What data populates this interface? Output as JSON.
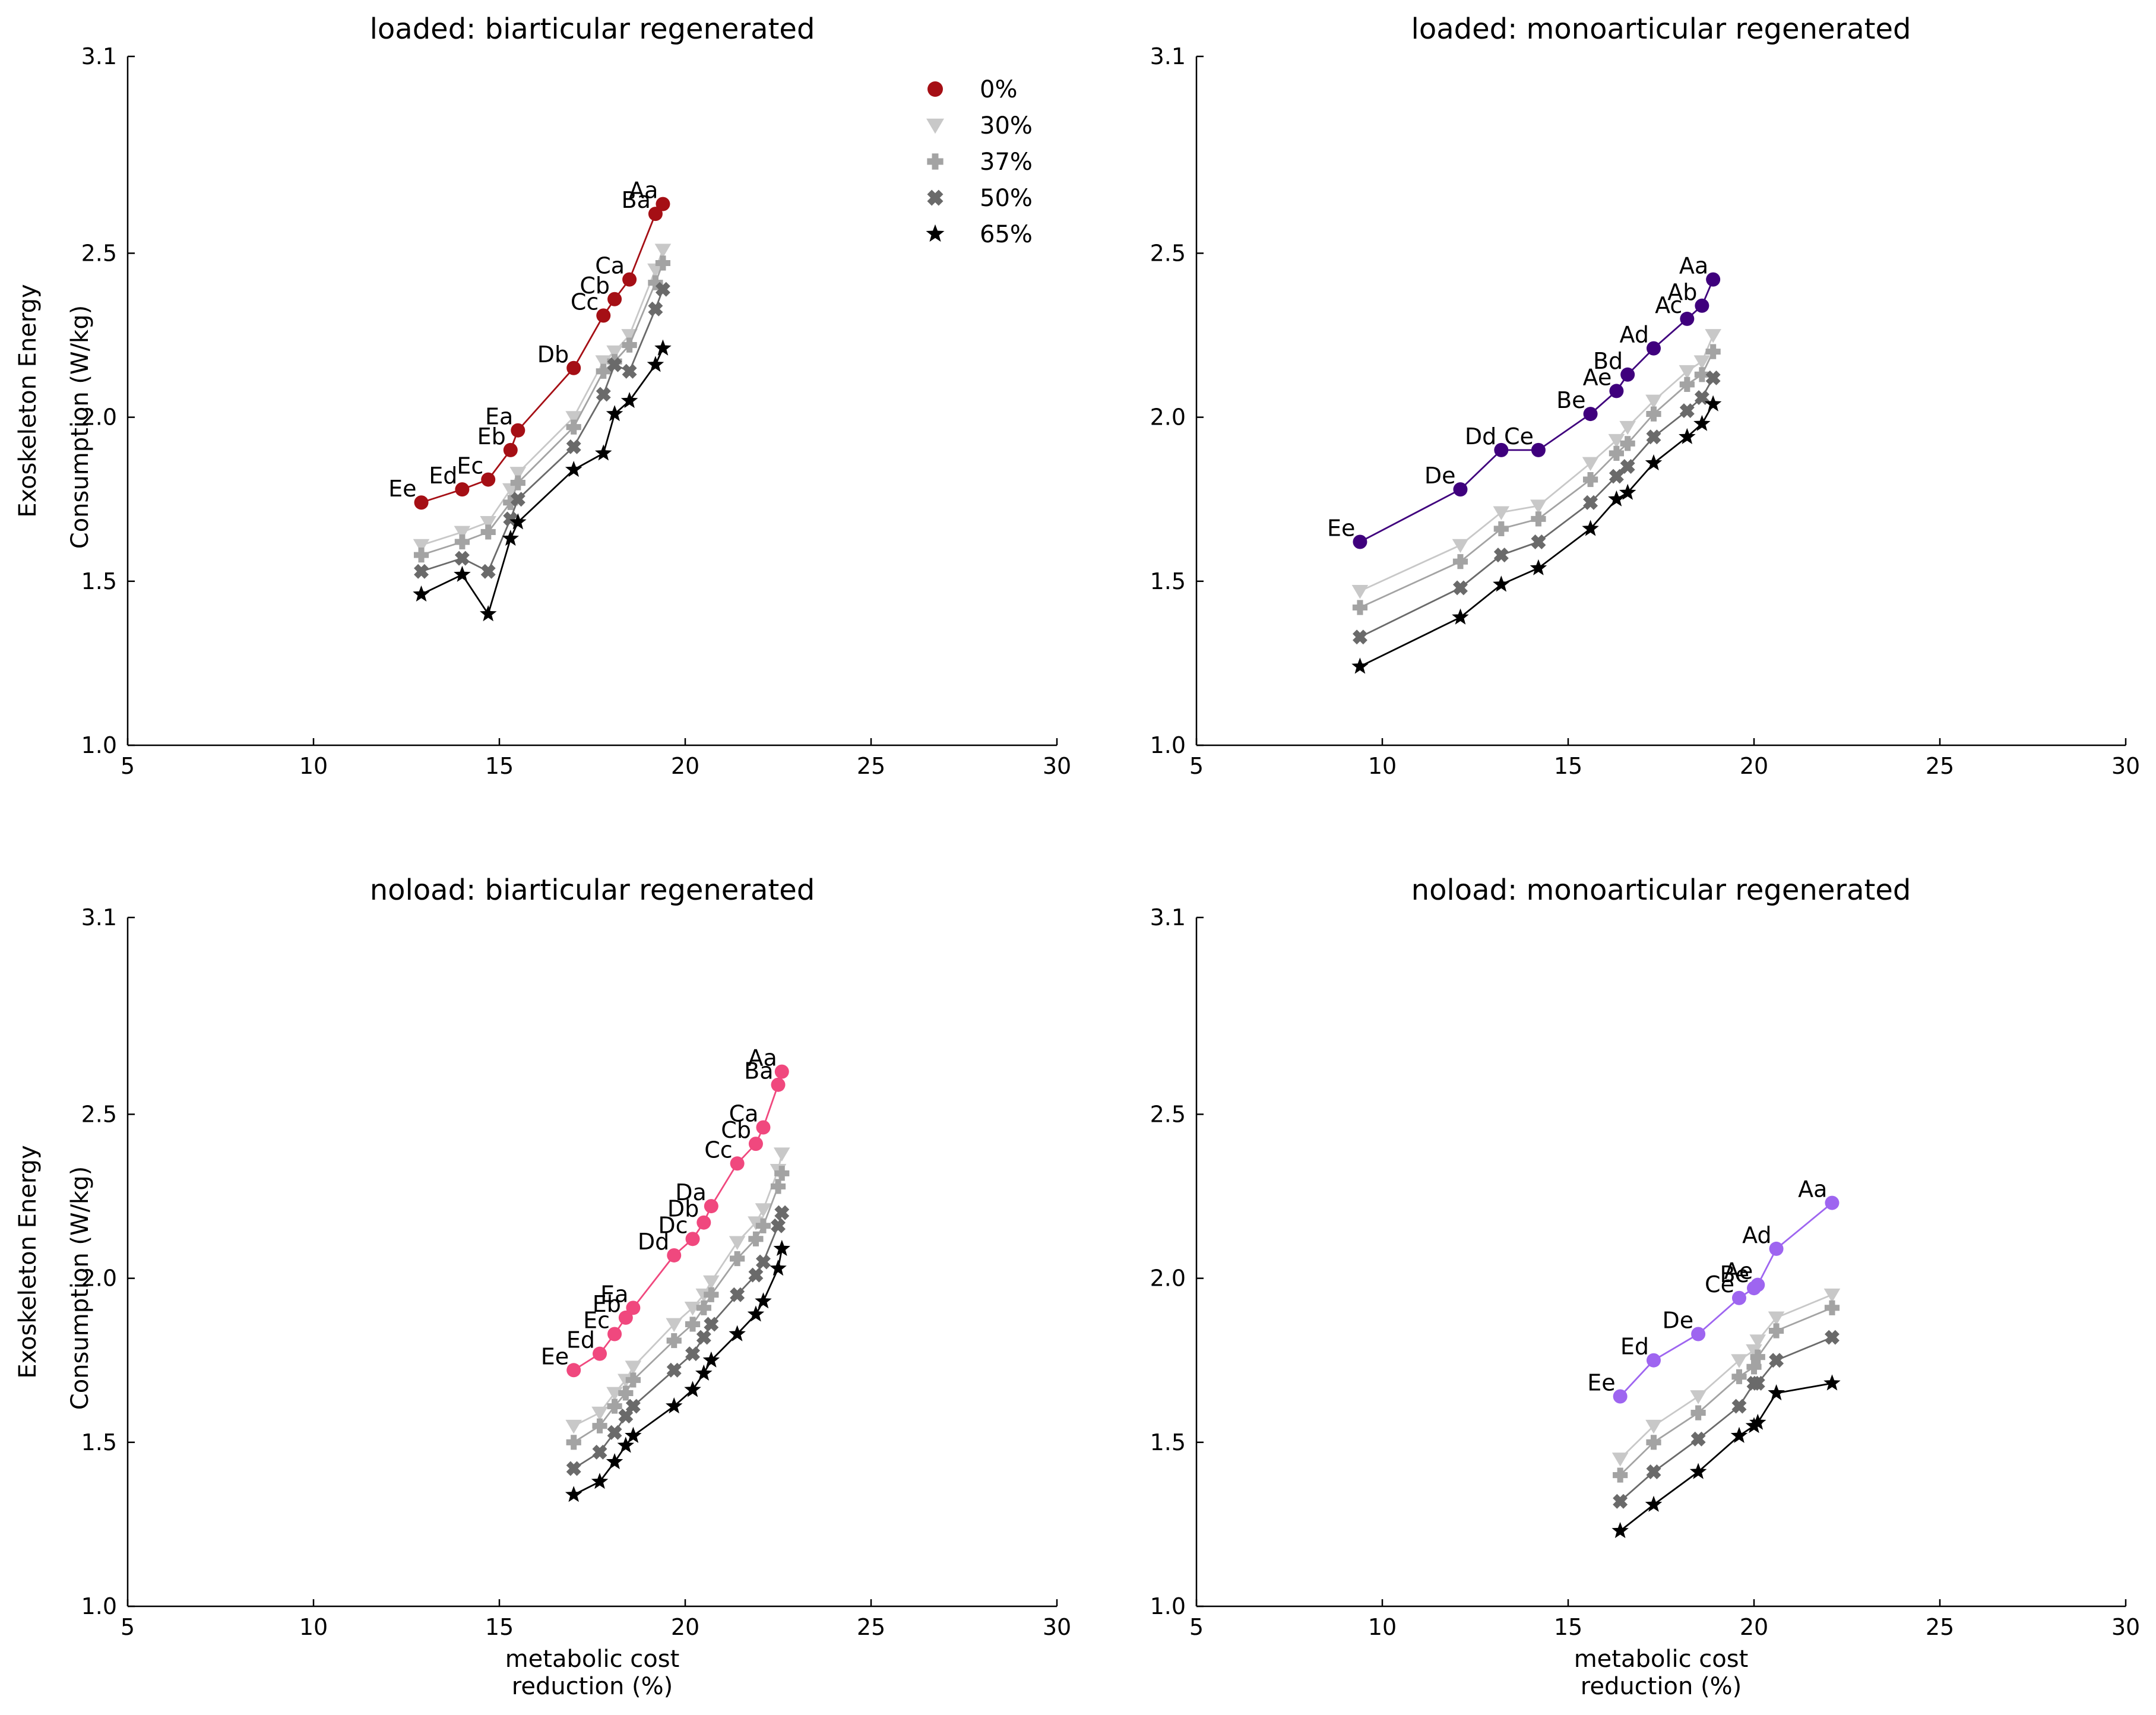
{
  "chart_data": [
    {
      "type": "line",
      "title": "loaded: biarticular regenerated",
      "xlabel": "",
      "ylabel": [
        "Exoskeleton Energy",
        "Consumption (W/kg)"
      ],
      "xlim": [
        5,
        30
      ],
      "ylim": [
        1.0,
        3.1
      ],
      "xticks": [
        5,
        10,
        15,
        20,
        25,
        30
      ],
      "yticks": [
        1.0,
        1.5,
        2.0,
        2.5,
        3.1
      ],
      "accent": "#a50f15",
      "legend": true,
      "series": [
        {
          "name": "0%",
          "x": [
            12.9,
            14.0,
            14.7,
            15.3,
            15.5,
            17.0,
            17.8,
            18.1,
            18.5,
            19.2,
            19.4
          ],
          "y": [
            1.74,
            1.78,
            1.81,
            1.9,
            1.96,
            2.15,
            2.31,
            2.36,
            2.42,
            2.62,
            2.65
          ],
          "labels": [
            "Ee",
            "Ed",
            "Ec",
            "Eb",
            "Ea",
            "Db",
            "Cc",
            "Cb",
            "Ca",
            "Ba",
            "Aa"
          ]
        },
        {
          "name": "30%",
          "x": [
            12.9,
            14.0,
            14.7,
            15.3,
            15.5,
            17.0,
            17.8,
            18.1,
            18.5,
            19.2,
            19.4
          ],
          "y": [
            1.61,
            1.65,
            1.68,
            1.78,
            1.83,
            2.0,
            2.17,
            2.2,
            2.25,
            2.45,
            2.51
          ]
        },
        {
          "name": "37%",
          "x": [
            12.9,
            14.0,
            14.7,
            15.3,
            15.5,
            17.0,
            17.8,
            18.1,
            18.5,
            19.2,
            19.4
          ],
          "y": [
            1.58,
            1.62,
            1.65,
            1.74,
            1.8,
            1.97,
            2.14,
            2.17,
            2.22,
            2.41,
            2.47
          ]
        },
        {
          "name": "50%",
          "x": [
            12.9,
            14.0,
            14.7,
            15.3,
            15.5,
            17.0,
            17.8,
            18.1,
            18.5,
            19.2,
            19.4
          ],
          "y": [
            1.53,
            1.57,
            1.53,
            1.69,
            1.75,
            1.91,
            2.07,
            2.16,
            2.14,
            2.33,
            2.39
          ]
        },
        {
          "name": "65%",
          "x": [
            12.9,
            14.0,
            14.7,
            15.3,
            15.5,
            17.0,
            17.8,
            18.1,
            18.5,
            19.2,
            19.4
          ],
          "y": [
            1.46,
            1.52,
            1.4,
            1.63,
            1.68,
            1.84,
            1.89,
            2.01,
            2.05,
            2.16,
            2.21
          ]
        }
      ]
    },
    {
      "type": "line",
      "title": "loaded: monoarticular regenerated",
      "xlabel": "",
      "ylabel": [],
      "xlim": [
        5,
        30
      ],
      "ylim": [
        1.0,
        3.1
      ],
      "xticks": [
        5,
        10,
        15,
        20,
        25,
        30
      ],
      "yticks": [
        1.0,
        1.5,
        2.0,
        2.5,
        3.1
      ],
      "accent": "#3f007d",
      "legend": false,
      "series": [
        {
          "name": "0%",
          "x": [
            9.4,
            12.1,
            13.2,
            14.2,
            15.6,
            16.3,
            16.6,
            17.3,
            18.2,
            18.6,
            18.9
          ],
          "y": [
            1.62,
            1.78,
            1.9,
            1.9,
            2.01,
            2.08,
            2.13,
            2.21,
            2.3,
            2.34,
            2.42
          ],
          "labels": [
            "Ee",
            "De",
            "Dd",
            "Ce",
            "Be",
            "Ae",
            "Bd",
            "Ad",
            "Ac",
            "Ab",
            "Aa"
          ]
        },
        {
          "name": "30%",
          "x": [
            9.4,
            12.1,
            13.2,
            14.2,
            15.6,
            16.3,
            16.6,
            17.3,
            18.2,
            18.6,
            18.9
          ],
          "y": [
            1.47,
            1.61,
            1.71,
            1.73,
            1.86,
            1.93,
            1.97,
            2.05,
            2.14,
            2.17,
            2.25
          ]
        },
        {
          "name": "37%",
          "x": [
            9.4,
            12.1,
            13.2,
            14.2,
            15.6,
            16.3,
            16.6,
            17.3,
            18.2,
            18.6,
            18.9
          ],
          "y": [
            1.42,
            1.56,
            1.66,
            1.69,
            1.81,
            1.89,
            1.92,
            2.01,
            2.1,
            2.13,
            2.2
          ]
        },
        {
          "name": "50%",
          "x": [
            9.4,
            12.1,
            13.2,
            14.2,
            15.6,
            16.3,
            16.6,
            17.3,
            18.2,
            18.6,
            18.9
          ],
          "y": [
            1.33,
            1.48,
            1.58,
            1.62,
            1.74,
            1.82,
            1.85,
            1.94,
            2.02,
            2.06,
            2.12
          ]
        },
        {
          "name": "65%",
          "x": [
            9.4,
            12.1,
            13.2,
            14.2,
            15.6,
            16.3,
            16.6,
            17.3,
            18.2,
            18.6,
            18.9
          ],
          "y": [
            1.24,
            1.39,
            1.49,
            1.54,
            1.66,
            1.75,
            1.77,
            1.86,
            1.94,
            1.98,
            2.04
          ]
        }
      ]
    },
    {
      "type": "line",
      "title": "noload: biarticular regenerated",
      "xlabel": [
        "metabolic cost",
        "reduction (%)"
      ],
      "ylabel": [
        "Exoskeleton Energy",
        "Consumption (W/kg)"
      ],
      "xlim": [
        5,
        30
      ],
      "ylim": [
        1.0,
        3.1
      ],
      "xticks": [
        5,
        10,
        15,
        20,
        25,
        30
      ],
      "yticks": [
        1.0,
        1.5,
        2.0,
        2.5,
        3.1
      ],
      "accent": "#f0487e",
      "legend": false,
      "series": [
        {
          "name": "0%",
          "x": [
            17.0,
            17.7,
            18.1,
            18.4,
            18.6,
            19.7,
            20.2,
            20.5,
            20.7,
            21.4,
            21.9,
            22.1,
            22.5,
            22.6
          ],
          "y": [
            1.72,
            1.77,
            1.83,
            1.88,
            1.91,
            2.07,
            2.12,
            2.17,
            2.22,
            2.35,
            2.41,
            2.46,
            2.59,
            2.63
          ],
          "labels": [
            "Ee",
            "Ed",
            "Ec",
            "Eb",
            "Ea",
            "Dd",
            "Dc",
            "Db",
            "Da",
            "Cc",
            "Cb",
            "Ca",
            "Ba",
            "Aa"
          ]
        },
        {
          "name": "30%",
          "x": [
            17.0,
            17.7,
            18.1,
            18.4,
            18.6,
            19.7,
            20.2,
            20.5,
            20.7,
            21.4,
            21.9,
            22.1,
            22.5,
            22.6
          ],
          "y": [
            1.55,
            1.59,
            1.65,
            1.69,
            1.73,
            1.86,
            1.91,
            1.95,
            1.99,
            2.11,
            2.17,
            2.21,
            2.33,
            2.38
          ]
        },
        {
          "name": "37%",
          "x": [
            17.0,
            17.7,
            18.1,
            18.4,
            18.6,
            19.7,
            20.2,
            20.5,
            20.7,
            21.4,
            21.9,
            22.1,
            22.5,
            22.6
          ],
          "y": [
            1.5,
            1.55,
            1.61,
            1.65,
            1.69,
            1.81,
            1.86,
            1.91,
            1.95,
            2.06,
            2.12,
            2.16,
            2.28,
            2.32
          ]
        },
        {
          "name": "50%",
          "x": [
            17.0,
            17.7,
            18.1,
            18.4,
            18.6,
            19.7,
            20.2,
            20.5,
            20.7,
            21.4,
            21.9,
            22.1,
            22.5,
            22.6
          ],
          "y": [
            1.42,
            1.47,
            1.53,
            1.58,
            1.61,
            1.72,
            1.77,
            1.82,
            1.86,
            1.95,
            2.01,
            2.05,
            2.16,
            2.2
          ]
        },
        {
          "name": "65%",
          "x": [
            17.0,
            17.7,
            18.1,
            18.4,
            18.6,
            19.7,
            20.2,
            20.5,
            20.7,
            21.4,
            21.9,
            22.1,
            22.5,
            22.6
          ],
          "y": [
            1.34,
            1.38,
            1.44,
            1.49,
            1.52,
            1.61,
            1.66,
            1.71,
            1.75,
            1.83,
            1.89,
            1.93,
            2.03,
            2.09
          ]
        }
      ]
    },
    {
      "type": "line",
      "title": "noload: monoarticular regenerated",
      "xlabel": [
        "metabolic cost",
        "reduction (%)"
      ],
      "ylabel": [],
      "xlim": [
        5,
        30
      ],
      "ylim": [
        1.0,
        3.1
      ],
      "xticks": [
        5,
        10,
        15,
        20,
        25,
        30
      ],
      "yticks": [
        1.0,
        1.5,
        2.0,
        2.5,
        3.1
      ],
      "accent": "#9e65f0",
      "legend": false,
      "series": [
        {
          "name": "0%",
          "x": [
            16.4,
            17.3,
            18.5,
            19.6,
            20.0,
            20.1,
            20.6,
            22.1
          ],
          "y": [
            1.64,
            1.75,
            1.83,
            1.94,
            1.97,
            1.98,
            2.09,
            2.23
          ],
          "labels": [
            "Ee",
            "Ed",
            "De",
            "Ce",
            "Be",
            "Ae",
            "Ad",
            "Aa"
          ]
        },
        {
          "name": "30%",
          "x": [
            16.4,
            17.3,
            18.5,
            19.6,
            20.0,
            20.1,
            20.6,
            22.1
          ],
          "y": [
            1.45,
            1.55,
            1.64,
            1.75,
            1.78,
            1.81,
            1.88,
            1.95
          ]
        },
        {
          "name": "37%",
          "x": [
            16.4,
            17.3,
            18.5,
            19.6,
            20.0,
            20.1,
            20.6,
            22.1
          ],
          "y": [
            1.4,
            1.5,
            1.59,
            1.7,
            1.73,
            1.76,
            1.84,
            1.91
          ]
        },
        {
          "name": "50%",
          "x": [
            16.4,
            17.3,
            18.5,
            19.6,
            20.0,
            20.1,
            20.6,
            22.1
          ],
          "y": [
            1.32,
            1.41,
            1.51,
            1.61,
            1.68,
            1.68,
            1.75,
            1.82
          ]
        },
        {
          "name": "65%",
          "x": [
            16.4,
            17.3,
            18.5,
            19.6,
            20.0,
            20.1,
            20.6,
            22.1
          ],
          "y": [
            1.23,
            1.31,
            1.41,
            1.52,
            1.55,
            1.56,
            1.65,
            1.68
          ]
        }
      ]
    }
  ],
  "colors": {
    "30%": "#c8c8c8",
    "37%": "#a3a3a3",
    "50%": "#6a6a6a",
    "65%": "#000000"
  },
  "markers": {
    "0%": "circle",
    "30%": "triangle-down",
    "37%": "plus",
    "50%": "x",
    "65%": "star"
  }
}
